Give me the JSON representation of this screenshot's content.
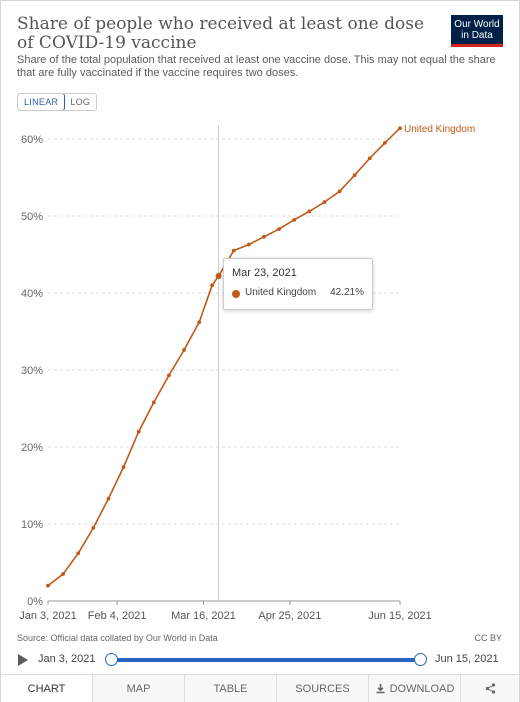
{
  "header": {
    "title": "Share of people who received at least one dose of COVID-19 vaccine",
    "subtitle": "Share of the total population that received at least one vaccine dose. This may not equal the share that are fully vaccinated if the vaccine requires two doses.",
    "logo_line1": "Our World",
    "logo_line2": "in Data"
  },
  "scale_toggle": {
    "linear": "LINEAR",
    "log": "LOG",
    "selected": "LINEAR"
  },
  "colors": {
    "series": "#c05917",
    "accent": "#2a65c2",
    "logo_bg": "#002147",
    "logo_stripe": "#ce261e"
  },
  "chart_data": {
    "type": "line",
    "title": "Share of people who received at least one dose of COVID-19 vaccine",
    "xlabel": "",
    "ylabel": "",
    "ylim": [
      0,
      62
    ],
    "yticks": [
      0,
      10,
      20,
      30,
      40,
      50,
      60
    ],
    "ytick_labels": [
      "0%",
      "10%",
      "20%",
      "30%",
      "40%",
      "50%",
      "60%"
    ],
    "xticks": [
      "2021-01-03",
      "2021-02-04",
      "2021-03-16",
      "2021-04-25",
      "2021-06-15"
    ],
    "xtick_labels": [
      "Jan 3, 2021",
      "Feb 4, 2021",
      "Mar 16, 2021",
      "Apr 25, 2021",
      "Jun 15, 2021"
    ],
    "xlim": [
      "2021-01-03",
      "2021-06-15"
    ],
    "grid": "horizontal dashed",
    "series": [
      {
        "name": "United Kingdom",
        "color": "#c05917",
        "points": [
          [
            "2021-01-03",
            2.0
          ],
          [
            "2021-01-10",
            3.5
          ],
          [
            "2021-01-17",
            6.2
          ],
          [
            "2021-01-24",
            9.5
          ],
          [
            "2021-01-31",
            13.3
          ],
          [
            "2021-02-07",
            17.4
          ],
          [
            "2021-02-14",
            22.0
          ],
          [
            "2021-02-21",
            25.8
          ],
          [
            "2021-02-28",
            29.3
          ],
          [
            "2021-03-07",
            32.6
          ],
          [
            "2021-03-14",
            36.2
          ],
          [
            "2021-03-20",
            41.0
          ],
          [
            "2021-03-23",
            42.21
          ],
          [
            "2021-03-30",
            45.5
          ],
          [
            "2021-04-06",
            46.3
          ],
          [
            "2021-04-13",
            47.3
          ],
          [
            "2021-04-20",
            48.3
          ],
          [
            "2021-04-27",
            49.5
          ],
          [
            "2021-05-04",
            50.6
          ],
          [
            "2021-05-11",
            51.8
          ],
          [
            "2021-05-18",
            53.2
          ],
          [
            "2021-05-25",
            55.3
          ],
          [
            "2021-06-01",
            57.5
          ],
          [
            "2021-06-08",
            59.5
          ],
          [
            "2021-06-15",
            61.4
          ]
        ]
      }
    ],
    "hover": {
      "date": "2021-03-23",
      "date_label": "Mar 23, 2021",
      "series": "United Kingdom",
      "value_label": "42.21%"
    }
  },
  "footer": {
    "source": "Source: Official data collated by Our World in Data",
    "license": "CC BY"
  },
  "timeline": {
    "start_label": "Jan 3, 2021",
    "end_label": "Jun 15, 2021"
  },
  "tabs": [
    {
      "label": "CHART",
      "active": true
    },
    {
      "label": "MAP"
    },
    {
      "label": "TABLE"
    },
    {
      "label": "SOURCES"
    },
    {
      "label": "DOWNLOAD",
      "icon": "download-icon"
    }
  ],
  "share_icon": "share-icon"
}
